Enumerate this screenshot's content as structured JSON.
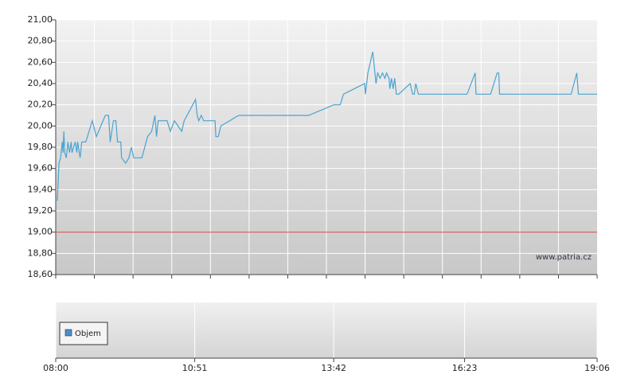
{
  "chart_data": [
    {
      "type": "line",
      "x": [
        "08:00",
        "08:02",
        "08:04",
        "08:06",
        "08:08",
        "08:09",
        "08:10",
        "08:11",
        "08:13",
        "08:15",
        "08:17",
        "08:19",
        "08:20",
        "08:24",
        "08:26",
        "08:27",
        "08:30",
        "08:32",
        "08:37",
        "08:45",
        "08:50",
        "09:01",
        "09:05",
        "09:07",
        "09:11",
        "09:14",
        "09:16",
        "09:20",
        "09:21",
        "09:26",
        "09:30",
        "09:33",
        "09:36",
        "09:46",
        "09:53",
        "09:58",
        "10:02",
        "10:04",
        "10:06",
        "10:17",
        "10:21",
        "10:26",
        "10:35",
        "10:38",
        "10:52",
        "10:54",
        "10:56",
        "10:59",
        "11:02",
        "11:16",
        "11:17",
        "11:20",
        "11:23",
        "11:45",
        "13:11",
        "13:42",
        "13:50",
        "13:54",
        "14:20",
        "14:21",
        "14:24",
        "14:30",
        "14:34",
        "14:36",
        "14:39",
        "14:42",
        "14:45",
        "14:47",
        "14:50",
        "14:51",
        "14:53",
        "14:55",
        "14:57",
        "14:59",
        "15:02",
        "15:16",
        "15:19",
        "15:21",
        "15:23",
        "15:26",
        "16:26",
        "16:36",
        "16:37",
        "16:55",
        "17:03",
        "17:05",
        "17:06",
        "18:34",
        "18:41",
        "18:43",
        "19:06"
      ],
      "series": [
        {
          "color": "#4ba3d0",
          "values": [
            19.3,
            19.3,
            19.65,
            19.7,
            19.85,
            19.75,
            19.95,
            19.75,
            19.7,
            19.85,
            19.75,
            19.85,
            19.75,
            19.85,
            19.75,
            19.85,
            19.7,
            19.85,
            19.85,
            20.05,
            19.9,
            20.1,
            20.1,
            19.85,
            20.05,
            20.05,
            19.85,
            19.85,
            19.7,
            19.65,
            19.7,
            19.8,
            19.7,
            19.7,
            19.9,
            19.95,
            20.1,
            19.9,
            20.05,
            20.05,
            19.95,
            20.05,
            19.95,
            20.05,
            20.25,
            20.1,
            20.05,
            20.1,
            20.05,
            20.05,
            19.9,
            19.9,
            20.0,
            20.1,
            20.1,
            20.2,
            20.2,
            20.3,
            20.4,
            20.3,
            20.5,
            20.7,
            20.4,
            20.5,
            20.45,
            20.5,
            20.45,
            20.5,
            20.45,
            20.35,
            20.45,
            20.35,
            20.45,
            20.3,
            20.3,
            20.4,
            20.3,
            20.3,
            20.4,
            20.3,
            20.3,
            20.5,
            20.3,
            20.3,
            20.5,
            20.5,
            20.3,
            20.3,
            20.5,
            20.3,
            20.3
          ]
        }
      ],
      "xlim": [
        "08:00",
        "19:06"
      ],
      "ylim": [
        18.6,
        21
      ],
      "yticks": [
        {
          "value": 18.6,
          "label": "18,60"
        },
        {
          "value": 18.8,
          "label": "18,80"
        },
        {
          "value": 19,
          "label": "19,00"
        },
        {
          "value": 19.2,
          "label": "19,20"
        },
        {
          "value": 19.4,
          "label": "19,40"
        },
        {
          "value": 19.6,
          "label": "19,60"
        },
        {
          "value": 19.8,
          "label": "19,80"
        },
        {
          "value": 20,
          "label": "20,00"
        },
        {
          "value": 20.2,
          "label": "20,20"
        },
        {
          "value": 20.4,
          "label": "20,40"
        },
        {
          "value": 20.6,
          "label": "20,60"
        },
        {
          "value": 20.8,
          "label": "20,80"
        },
        {
          "value": 21,
          "label": "21,00"
        }
      ],
      "grid": true,
      "reference_line": {
        "value": 19,
        "color": "#d9534f"
      },
      "annotation": "www.patria.cz"
    },
    {
      "type": "bar",
      "series": [
        {
          "name": "Objem",
          "color": "#4a8fcf",
          "values": []
        }
      ],
      "xlim": [
        "08:00",
        "19:06"
      ],
      "xticks": [
        "08:00",
        "10:51",
        "13:42",
        "16:23",
        "19:06"
      ],
      "grid": true
    }
  ]
}
